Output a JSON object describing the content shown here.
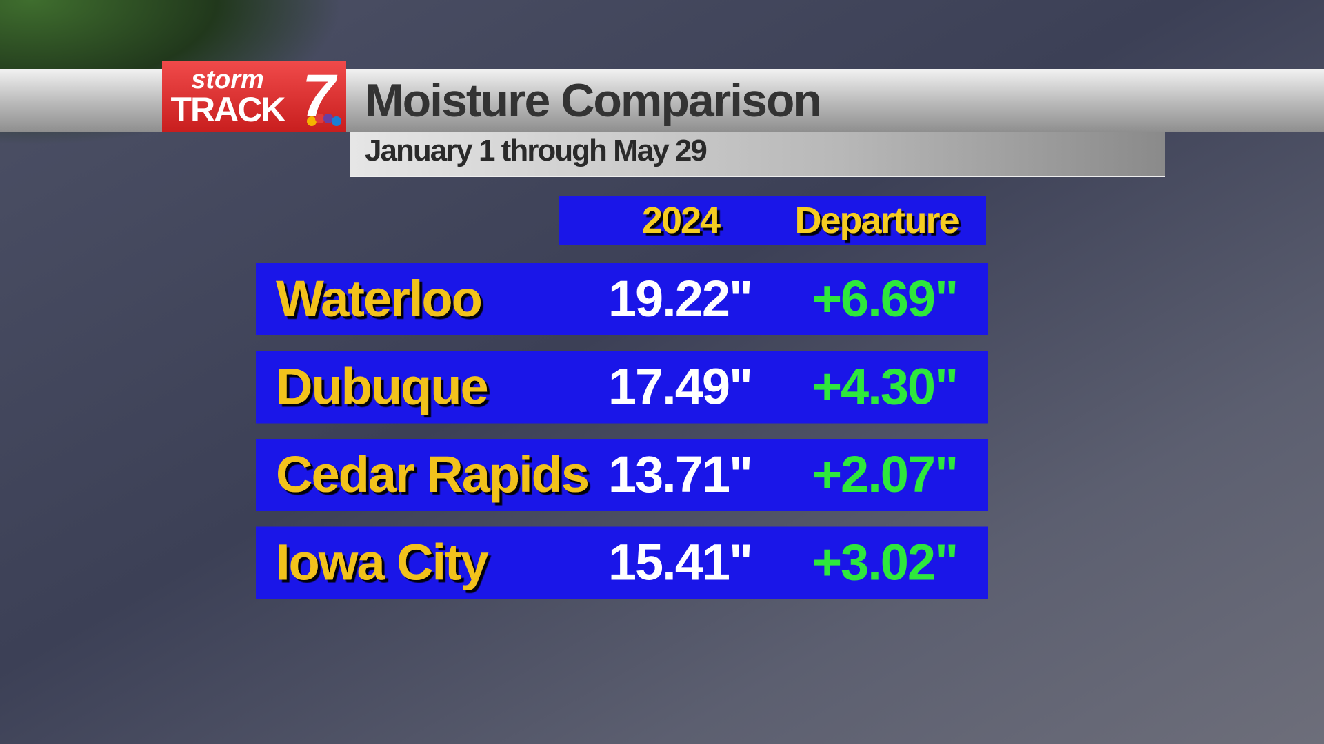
{
  "logo": {
    "storm": "storm",
    "track": "TRACK",
    "number": "7"
  },
  "header": {
    "title": "Moisture Comparison",
    "subtitle": "January 1 through May 29"
  },
  "table": {
    "columns": [
      "2024",
      "Departure"
    ],
    "rows": [
      [
        "Waterloo",
        "19.22\"",
        "+6.69\""
      ],
      [
        "Dubuque",
        "17.49\"",
        "+4.30\""
      ],
      [
        "Cedar Rapids",
        "13.71\"",
        "+2.07\""
      ],
      [
        "Iowa City",
        "15.41\"",
        "+3.02\""
      ]
    ]
  }
}
